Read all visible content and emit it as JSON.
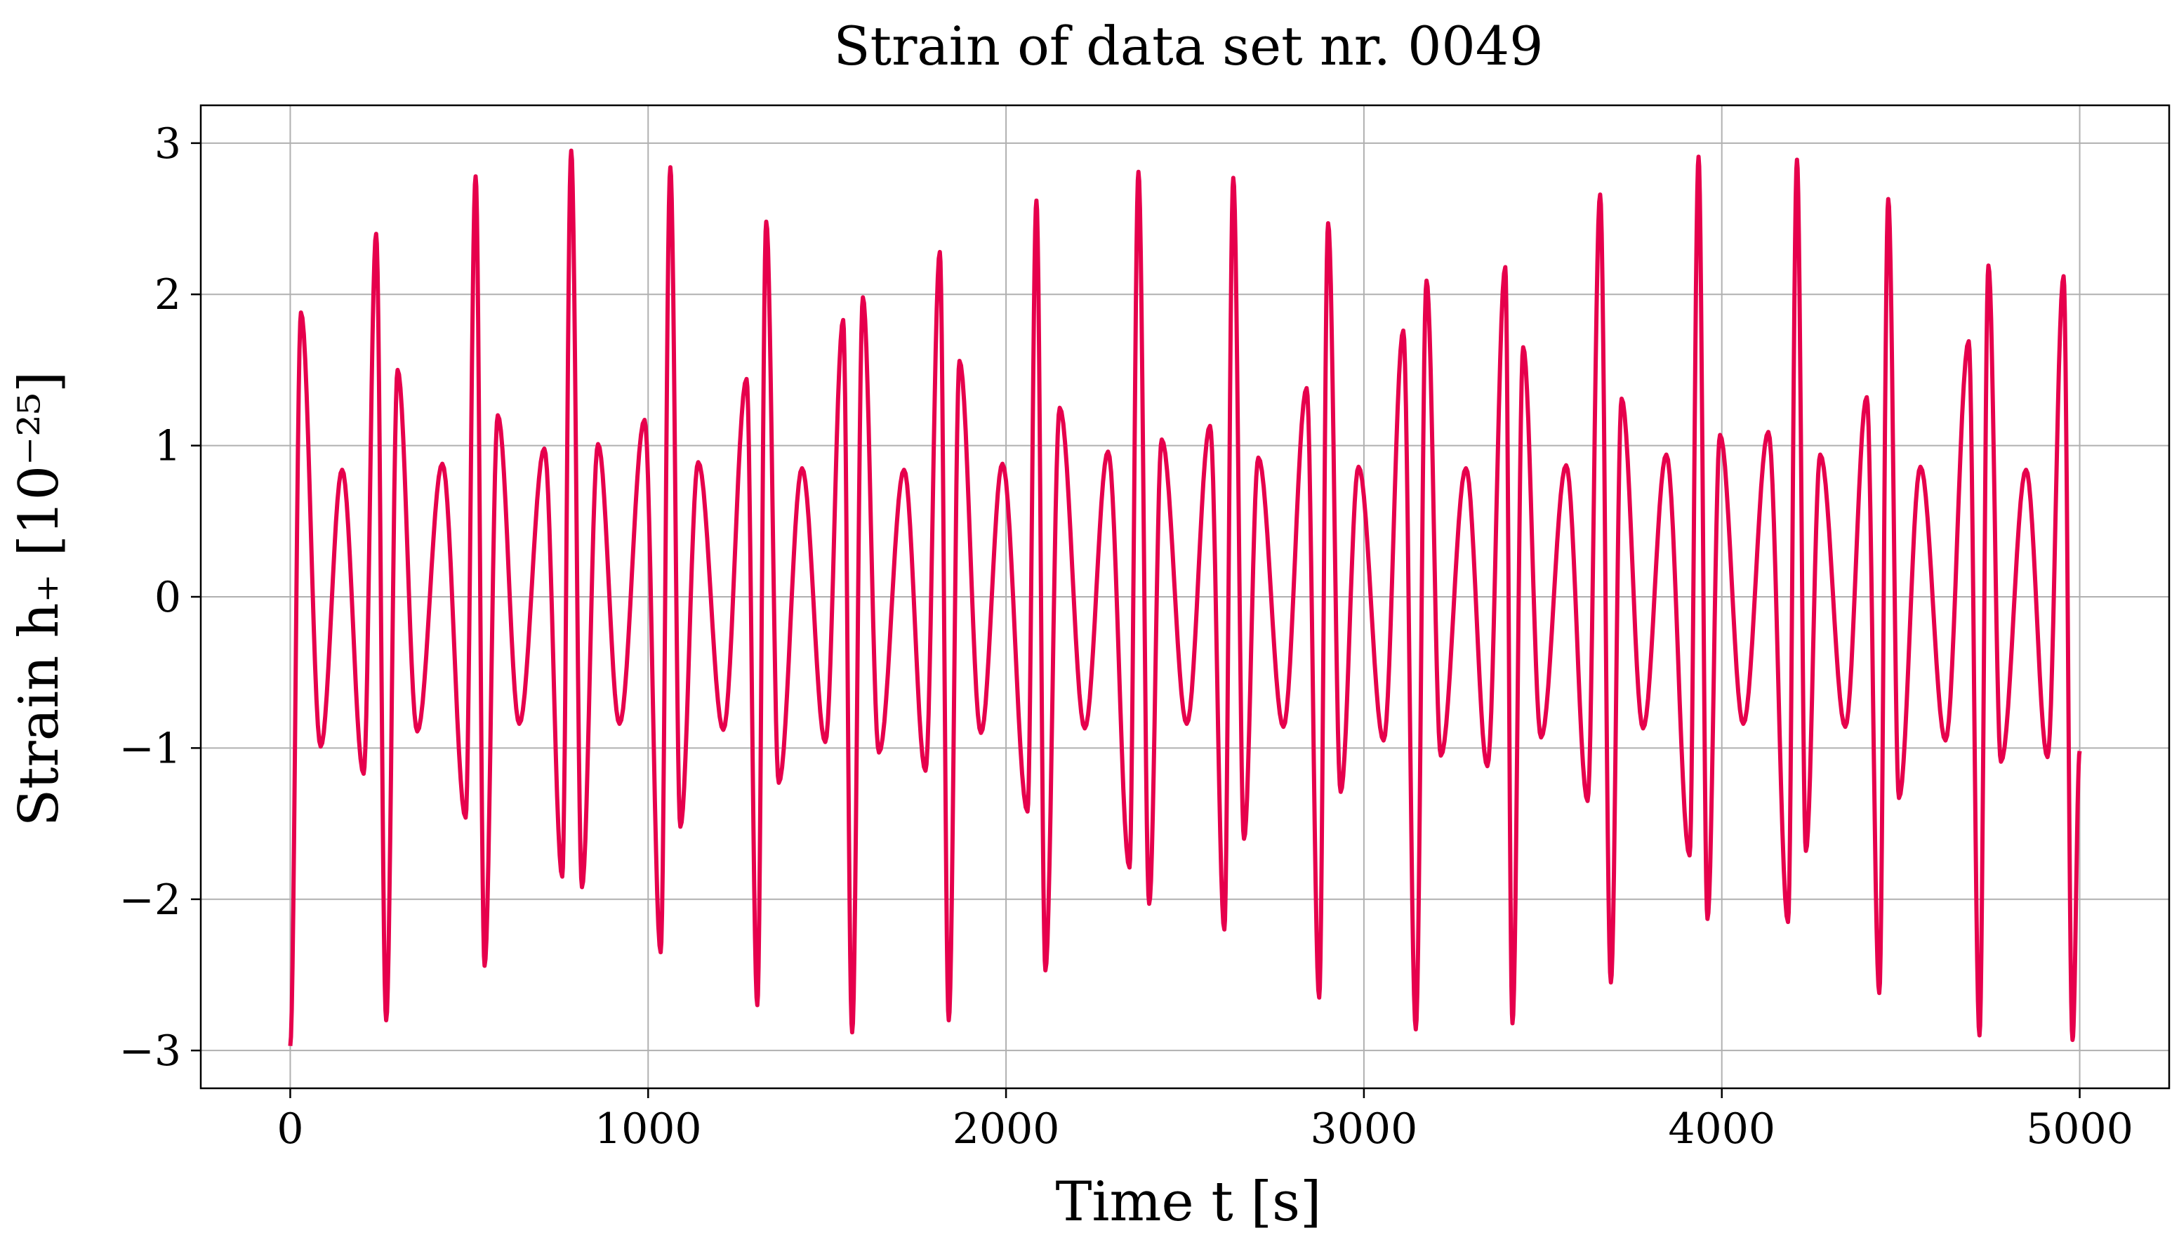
{
  "chart_data": {
    "type": "line",
    "title": "Strain of data set nr. 0049",
    "xlabel": "Time t [s]",
    "ylabel": "Strain h₊ [10⁻²⁵]",
    "xlim": [
      -250,
      5250
    ],
    "ylim": [
      -3.25,
      3.25
    ],
    "grid": true,
    "x_ticks": [
      0,
      1000,
      2000,
      3000,
      4000,
      5000
    ],
    "x_tick_labels": [
      "0",
      "1000",
      "2000",
      "3000",
      "4000",
      "5000"
    ],
    "y_ticks": [
      -3,
      -2,
      -1,
      0,
      1,
      2,
      3
    ],
    "y_tick_labels": [
      "−3",
      "−2",
      "−1",
      "0",
      "1",
      "2",
      "3"
    ],
    "series": [
      {
        "line_color": "#e6004c",
        "x": [
          0,
          30,
          85,
          145,
          205,
          240,
          268,
          300,
          355,
          425,
          490,
          518,
          543,
          580,
          640,
          710,
          760,
          785,
          815,
          860,
          920,
          990,
          1035,
          1062,
          1090,
          1140,
          1210,
          1275,
          1305,
          1330,
          1365,
          1430,
          1495,
          1545,
          1570,
          1600,
          1645,
          1715,
          1775,
          1815,
          1840,
          1870,
          1930,
          1990,
          2060,
          2085,
          2110,
          2150,
          2220,
          2285,
          2345,
          2370,
          2400,
          2435,
          2505,
          2570,
          2610,
          2635,
          2665,
          2705,
          2775,
          2840,
          2875,
          2900,
          2935,
          2985,
          3055,
          3110,
          3145,
          3175,
          3215,
          3285,
          3345,
          3395,
          3415,
          3445,
          3495,
          3565,
          3625,
          3660,
          3690,
          3720,
          3780,
          3845,
          3910,
          3935,
          3960,
          3995,
          4060,
          4130,
          4185,
          4210,
          4235,
          4275,
          4345,
          4405,
          4440,
          4465,
          4495,
          4555,
          4625,
          4690,
          4720,
          4745,
          4780,
          4850,
          4910,
          4955,
          4980,
          5000
        ],
        "y": [
          -2.97,
          1.88,
          -0.99,
          0.84,
          -1.17,
          2.4,
          -2.8,
          1.5,
          -0.89,
          0.88,
          -1.46,
          2.78,
          -2.44,
          1.2,
          -0.84,
          0.98,
          -1.85,
          2.95,
          -1.92,
          1.01,
          -0.84,
          1.17,
          -2.35,
          2.84,
          -1.52,
          0.89,
          -0.88,
          1.44,
          -2.7,
          2.48,
          -1.23,
          0.85,
          -0.96,
          1.83,
          -2.88,
          1.98,
          -1.03,
          0.84,
          -1.15,
          2.28,
          -2.8,
          1.56,
          -0.9,
          0.88,
          -1.42,
          2.62,
          -2.47,
          1.25,
          -0.87,
          0.96,
          -1.79,
          2.81,
          -2.03,
          1.04,
          -0.84,
          1.13,
          -2.2,
          2.77,
          -1.6,
          0.92,
          -0.86,
          1.38,
          -2.65,
          2.47,
          -1.29,
          0.86,
          -0.95,
          1.76,
          -2.86,
          2.09,
          -1.05,
          0.85,
          -1.12,
          2.18,
          -2.82,
          1.65,
          -0.93,
          0.87,
          -1.35,
          2.66,
          -2.55,
          1.31,
          -0.87,
          0.94,
          -1.71,
          2.91,
          -2.13,
          1.07,
          -0.84,
          1.09,
          -2.15,
          2.89,
          -1.68,
          0.94,
          -0.86,
          1.32,
          -2.62,
          2.63,
          -1.33,
          0.86,
          -0.95,
          1.69,
          -2.9,
          2.19,
          -1.09,
          0.84,
          -1.06,
          2.12,
          -2.93,
          -1.02
        ]
      }
    ]
  }
}
